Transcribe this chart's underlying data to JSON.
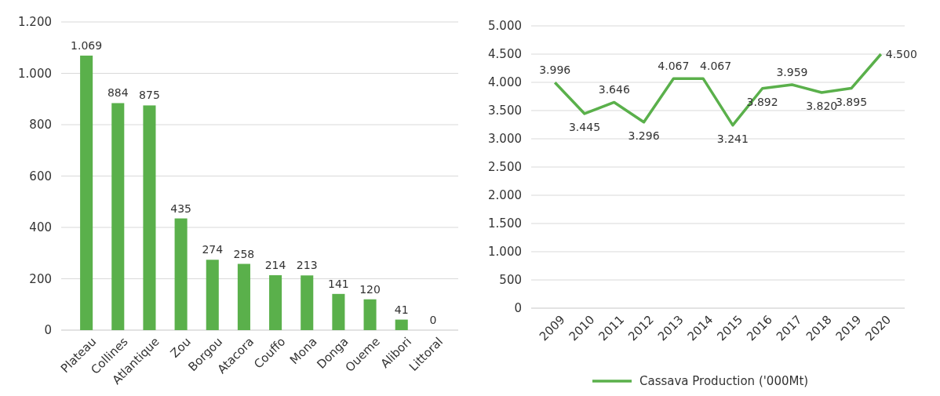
{
  "chart_data": [
    {
      "type": "bar",
      "categories": [
        "Plateau",
        "Collines",
        "Atlantique",
        "Zou",
        "Borgou",
        "Atacora",
        "Couffo",
        "Mona",
        "Donga",
        "Oueme",
        "Alibori",
        "Littoral"
      ],
      "values": [
        1069,
        884,
        875,
        435,
        274,
        258,
        214,
        213,
        141,
        120,
        41,
        0
      ],
      "value_labels": [
        "1.069",
        "884",
        "875",
        "435",
        "274",
        "258",
        "214",
        "213",
        "141",
        "120",
        "41",
        "0"
      ],
      "color": "#5ab04b",
      "ylim": [
        0,
        1200
      ],
      "yticks": [
        0,
        200,
        400,
        600,
        800,
        {
          "value": 1000,
          "label": "1.000"
        },
        {
          "value": 1200,
          "label": "1.200"
        }
      ],
      "grid": "y"
    },
    {
      "type": "line",
      "categories": [
        "2009",
        "2010",
        "2011",
        "2012",
        "2013",
        "2014",
        "2015",
        "2016",
        "2017",
        "2018",
        "2019",
        "2020"
      ],
      "series": [
        {
          "name": "Cassava Production ('000Mt)",
          "color": "#5ab04b",
          "values": [
            3996,
            3445,
            3646,
            3296,
            4067,
            4067,
            3241,
            3892,
            3959,
            3820,
            3895,
            4500
          ],
          "value_labels": [
            "3.996",
            "3.445",
            "3.646",
            "3.296",
            "4.067",
            "4.067",
            "3.241",
            "3.892",
            "3.959",
            "3.820",
            "3.895",
            "4.500"
          ]
        }
      ],
      "ylim": [
        0,
        5000
      ],
      "yticks": [
        0,
        500,
        {
          "value": 1000,
          "label": "1.000"
        },
        {
          "value": 1500,
          "label": "1.500"
        },
        {
          "value": 2000,
          "label": "2.000"
        },
        {
          "value": 2500,
          "label": "2.500"
        },
        {
          "value": 3000,
          "label": "3.000"
        },
        {
          "value": 3500,
          "label": "3.500"
        },
        {
          "value": 4000,
          "label": "4.000"
        },
        {
          "value": 4500,
          "label": "4.500"
        },
        {
          "value": 5000,
          "label": "5.000"
        }
      ],
      "grid": "y",
      "legend": "bottom",
      "marker": "none",
      "line_style": "solid"
    }
  ]
}
